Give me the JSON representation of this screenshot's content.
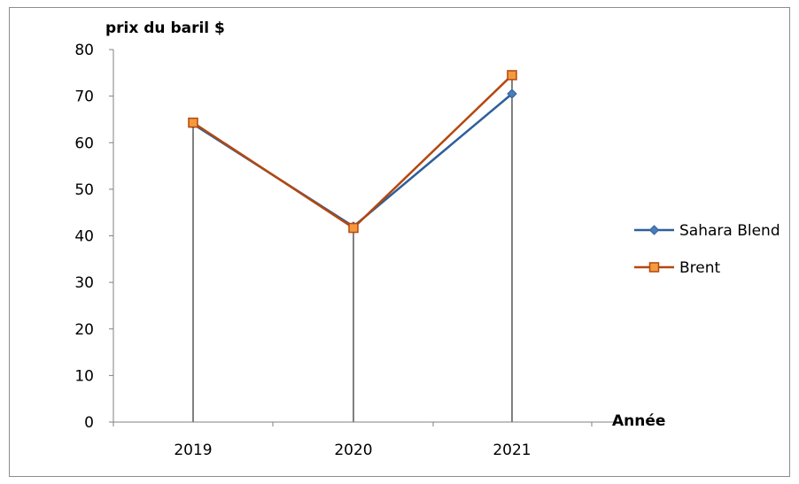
{
  "chart_data": {
    "type": "line",
    "title": "",
    "ylabel": "prix du baril $",
    "xlabel": "Année",
    "categories": [
      "2019",
      "2020",
      "2021"
    ],
    "ylim": [
      0,
      80
    ],
    "yticks": [
      0,
      10,
      20,
      30,
      40,
      50,
      60,
      70,
      80
    ],
    "grid": false,
    "drop_lines": true,
    "legend_position": "right",
    "series": [
      {
        "name": "Sahara Blend",
        "values": [
          64,
          42,
          70.5
        ],
        "color": "#2e5f9b",
        "marker": "diamond"
      },
      {
        "name": "Brent",
        "values": [
          64.3,
          41.7,
          74.5
        ],
        "color": "#b5470f",
        "marker": "square",
        "marker_fill": "#f59a3c"
      }
    ]
  }
}
